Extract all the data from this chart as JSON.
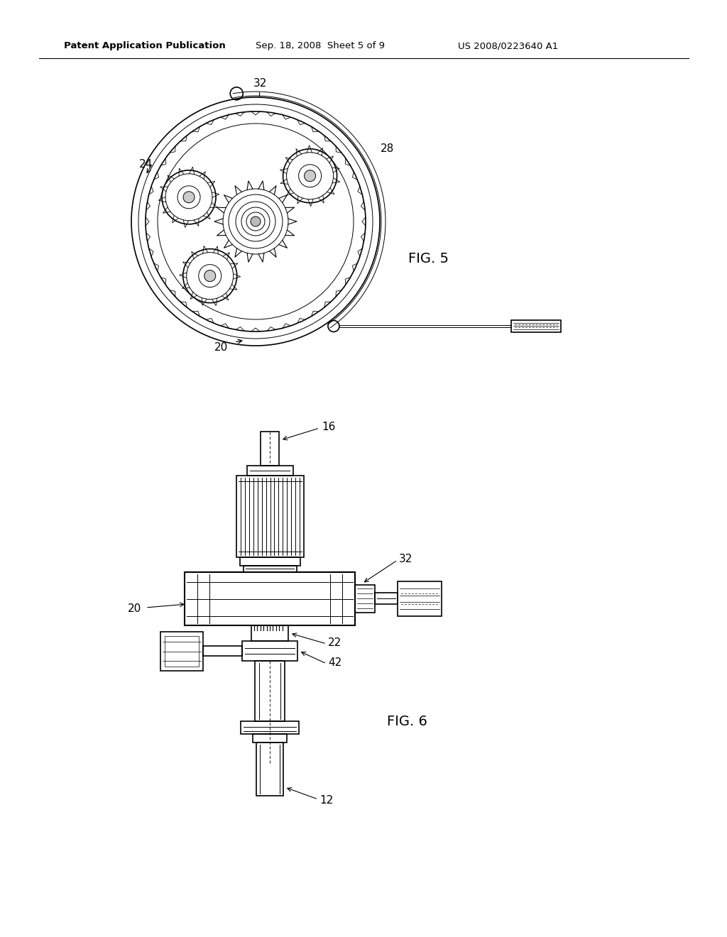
{
  "background_color": "#ffffff",
  "header_text": "Patent Application Publication",
  "header_date": "Sep. 18, 2008  Sheet 5 of 9",
  "header_patent": "US 2008/0223640 A1",
  "fig5_label": "FIG. 5",
  "fig6_label": "FIG. 6"
}
